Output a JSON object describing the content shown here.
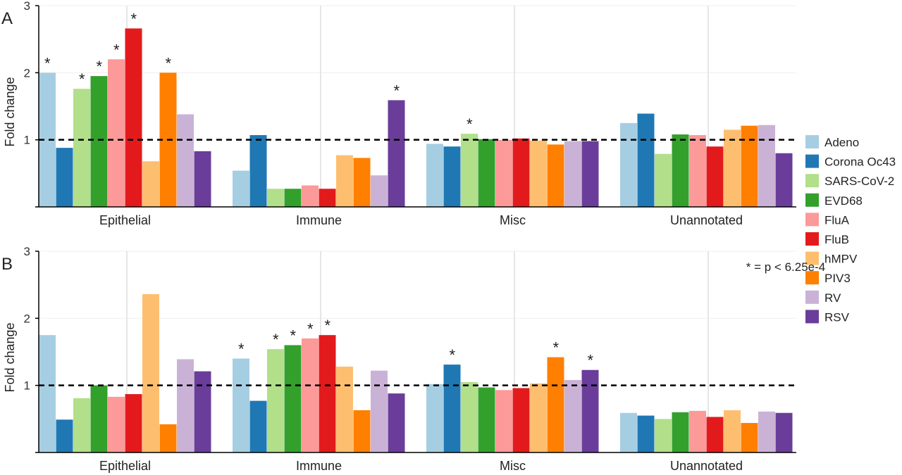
{
  "legend": [
    {
      "name": "Adeno",
      "color": "#a6cee3"
    },
    {
      "name": "Corona Oc43",
      "color": "#1f78b4"
    },
    {
      "name": "SARS-CoV-2",
      "color": "#b2df8a"
    },
    {
      "name": "EVD68",
      "color": "#33a02c"
    },
    {
      "name": "FluA",
      "color": "#fb9a99"
    },
    {
      "name": "FluB",
      "color": "#e31a1c"
    },
    {
      "name": "hMPV",
      "color": "#fdbf6f"
    },
    {
      "name": "PIV3",
      "color": "#ff7f00"
    },
    {
      "name": "RV",
      "color": "#cab2d6"
    },
    {
      "name": "RSV",
      "color": "#6a3d9a"
    }
  ],
  "note": "* = p < 6.25e-4",
  "chart_data": [
    {
      "type": "bar",
      "panel": "A",
      "ylabel": "Fold change",
      "ylim": [
        0,
        3
      ],
      "yticks": [
        "0",
        "1",
        "2",
        "3"
      ],
      "reference_line": 1,
      "categories": [
        "Epithelial",
        "Immune",
        "Misc",
        "Unannotated"
      ],
      "series": [
        {
          "name": "Adeno",
          "values": [
            2.0,
            0.54,
            0.94,
            1.25
          ],
          "significant": [
            true,
            false,
            false,
            false
          ]
        },
        {
          "name": "Corona Oc43",
          "values": [
            0.88,
            1.07,
            0.9,
            1.39
          ],
          "significant": [
            false,
            false,
            false,
            false
          ]
        },
        {
          "name": "SARS-CoV-2",
          "values": [
            1.76,
            0.27,
            1.09,
            0.79
          ],
          "significant": [
            true,
            false,
            true,
            false
          ]
        },
        {
          "name": "EVD68",
          "values": [
            1.95,
            0.27,
            1.01,
            1.08
          ],
          "significant": [
            true,
            false,
            false,
            false
          ]
        },
        {
          "name": "FluA",
          "values": [
            2.2,
            0.32,
            1.0,
            1.07
          ],
          "significant": [
            true,
            false,
            false,
            false
          ]
        },
        {
          "name": "FluB",
          "values": [
            2.66,
            0.27,
            1.02,
            0.9
          ],
          "significant": [
            true,
            false,
            false,
            false
          ]
        },
        {
          "name": "hMPV",
          "values": [
            0.68,
            0.77,
            0.99,
            1.15
          ],
          "significant": [
            false,
            false,
            false,
            false
          ]
        },
        {
          "name": "PIV3",
          "values": [
            2.0,
            0.73,
            0.93,
            1.21
          ],
          "significant": [
            true,
            false,
            false,
            false
          ]
        },
        {
          "name": "RV",
          "values": [
            1.38,
            0.47,
            0.98,
            1.22
          ],
          "significant": [
            false,
            false,
            false,
            false
          ]
        },
        {
          "name": "RSV",
          "values": [
            0.83,
            1.59,
            0.98,
            0.8
          ],
          "significant": [
            false,
            true,
            false,
            false
          ]
        }
      ]
    },
    {
      "type": "bar",
      "panel": "B",
      "ylabel": "Fold change",
      "ylim": [
        0,
        3
      ],
      "yticks": [
        "0",
        "1",
        "2",
        "3"
      ],
      "reference_line": 1,
      "categories": [
        "Epithelial",
        "Immune",
        "Misc",
        "Unannotated"
      ],
      "series": [
        {
          "name": "Adeno",
          "values": [
            1.75,
            1.4,
            1.02,
            0.59
          ],
          "significant": [
            false,
            true,
            false,
            false
          ]
        },
        {
          "name": "Corona Oc43",
          "values": [
            0.49,
            0.77,
            1.31,
            0.55
          ],
          "significant": [
            false,
            false,
            true,
            false
          ]
        },
        {
          "name": "SARS-CoV-2",
          "values": [
            0.81,
            1.54,
            1.05,
            0.5
          ],
          "significant": [
            false,
            true,
            false,
            false
          ]
        },
        {
          "name": "EVD68",
          "values": [
            1.0,
            1.6,
            0.97,
            0.6
          ],
          "significant": [
            false,
            true,
            false,
            false
          ]
        },
        {
          "name": "FluA",
          "values": [
            0.83,
            1.7,
            0.93,
            0.62
          ],
          "significant": [
            false,
            true,
            false,
            false
          ]
        },
        {
          "name": "FluB",
          "values": [
            0.87,
            1.75,
            0.96,
            0.53
          ],
          "significant": [
            false,
            true,
            false,
            false
          ]
        },
        {
          "name": "hMPV",
          "values": [
            2.36,
            1.28,
            1.03,
            0.63
          ],
          "significant": [
            false,
            false,
            false,
            false
          ]
        },
        {
          "name": "PIV3",
          "values": [
            0.42,
            0.63,
            1.42,
            0.44
          ],
          "significant": [
            false,
            false,
            true,
            false
          ]
        },
        {
          "name": "RV",
          "values": [
            1.39,
            1.22,
            1.08,
            0.61
          ],
          "significant": [
            false,
            false,
            false,
            false
          ]
        },
        {
          "name": "RSV",
          "values": [
            1.21,
            0.88,
            1.23,
            0.59
          ],
          "significant": [
            false,
            false,
            true,
            false
          ]
        }
      ]
    }
  ]
}
